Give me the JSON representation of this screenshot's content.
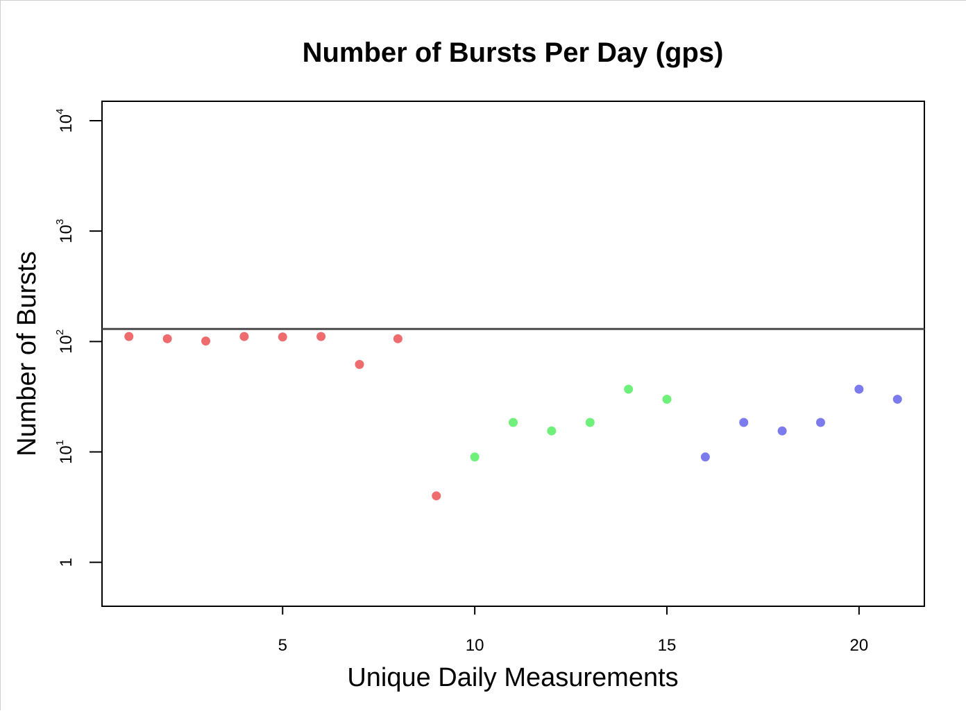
{
  "chart_data": {
    "type": "scatter",
    "title": "Number of Bursts Per Day (gps)",
    "xlabel": "Unique Daily Measurements",
    "ylabel": "Number of Bursts",
    "y_scale": "log",
    "xlim": [
      0.3,
      21.7
    ],
    "ylim": [
      0.4,
      15000
    ],
    "grid": false,
    "x_ticks": [
      {
        "value": 5,
        "label": "5"
      },
      {
        "value": 10,
        "label": "10"
      },
      {
        "value": 15,
        "label": "15"
      },
      {
        "value": 20,
        "label": "20"
      }
    ],
    "y_ticks": [
      {
        "value": 1,
        "base": "1",
        "exp": ""
      },
      {
        "value": 10,
        "base": "10",
        "exp": "1"
      },
      {
        "value": 100,
        "base": "10",
        "exp": "2"
      },
      {
        "value": 1000,
        "base": "10",
        "exp": "3"
      },
      {
        "value": 10000,
        "base": "10",
        "exp": "4"
      }
    ],
    "reference_line": {
      "y": 130,
      "color": "#4a4a4a"
    },
    "series": [
      {
        "color": "#ee6b6e",
        "x": [
          1,
          2,
          3,
          4,
          5,
          6,
          7,
          8,
          9
        ],
        "y": [
          111,
          106,
          101,
          111,
          110,
          111,
          62,
          106,
          4
        ]
      },
      {
        "color": "#6ef07a",
        "x": [
          10,
          11,
          12,
          13,
          14,
          15
        ],
        "y": [
          9,
          18.5,
          15.5,
          18.5,
          37,
          30
        ]
      },
      {
        "color": "#7b7bee",
        "x": [
          16,
          17,
          18,
          19,
          20,
          21
        ],
        "y": [
          9,
          18.5,
          15.5,
          18.5,
          37,
          30
        ]
      }
    ]
  }
}
